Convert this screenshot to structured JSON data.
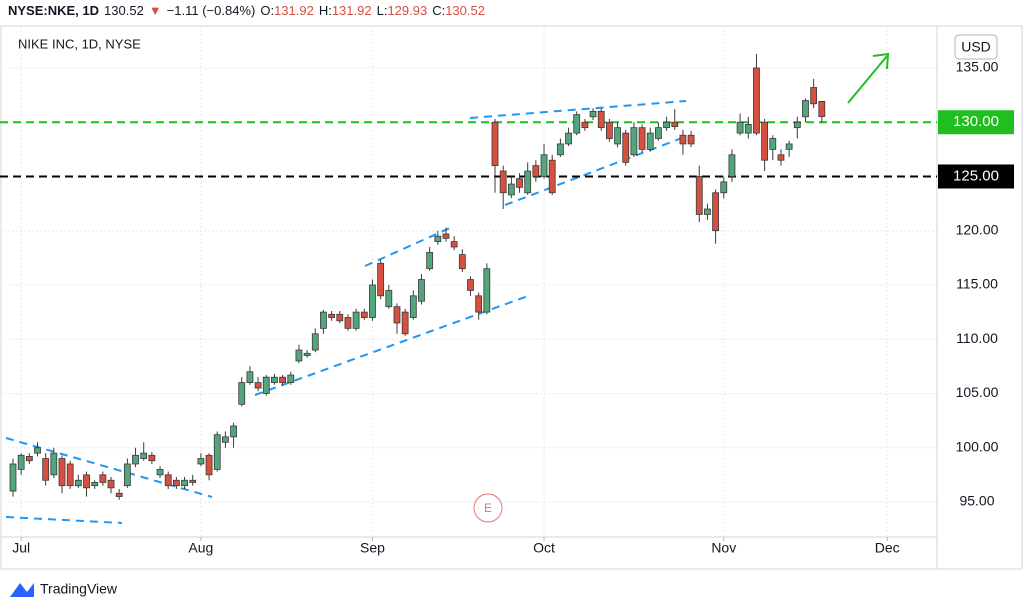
{
  "header": {
    "symbol": "NYSE:NKE, 1D",
    "arrow": "▼",
    "change": "−1.11 (−0.84%)",
    "open_label": "O:",
    "high_label": "H:",
    "low_label": "L:",
    "close_label": "C:",
    "currency": "USD",
    "brand": "TradingView",
    "earnings_marker": "E"
  },
  "chart_data": {
    "type": "candlestick",
    "title": "NIKE INC, 1D, NYSE",
    "up_color": "#53a57b",
    "down_color": "#d5503f",
    "open": [
      96,
      98,
      99.2,
      99.5,
      99,
      97.5,
      99,
      98.5,
      96.5,
      97.5,
      96.5,
      97.5,
      97,
      95.8,
      96.5,
      98.5,
      99,
      99.3,
      97.5,
      97.5,
      97,
      96.5,
      97,
      98.5,
      99.3,
      98,
      100.5,
      101,
      104,
      106,
      106,
      105,
      106,
      106.5,
      106,
      108,
      108.5,
      109,
      111,
      112.3,
      112.3,
      112,
      111,
      112.5,
      112,
      117,
      113,
      113,
      112.5,
      112,
      113.5,
      116.5,
      119,
      119.7,
      119,
      117.8,
      115.5,
      114,
      112.5,
      130,
      125.5,
      123.3,
      124.8,
      123.5,
      126,
      125,
      126.5,
      127,
      128,
      129,
      130,
      130.5,
      131,
      130,
      128,
      129,
      127,
      129.5,
      127.5,
      128.5,
      129.5,
      130,
      128.8,
      128.8,
      125,
      121.5,
      123.5,
      123.5,
      125,
      129,
      129,
      135,
      130,
      127.5,
      127,
      127.5,
      129.5,
      130.5,
      133.2,
      131.92
    ],
    "high": [
      99,
      99.5,
      99.5,
      100.5,
      99.5,
      100,
      99.3,
      98.8,
      97.5,
      97.8,
      97,
      97.8,
      97.3,
      96.2,
      99,
      100,
      100.5,
      99.6,
      98.3,
      97.8,
      97.3,
      97.3,
      97.5,
      99.5,
      99.5,
      101.5,
      101.5,
      102.3,
      106.5,
      107.5,
      106.5,
      106.7,
      106.8,
      106.7,
      107,
      109.5,
      109,
      111,
      112.7,
      112.6,
      112.6,
      112.3,
      112.8,
      112.8,
      115.5,
      117.3,
      115,
      113.3,
      112.8,
      114.5,
      116,
      118.5,
      120,
      120.3,
      119.5,
      118.3,
      115.8,
      114.3,
      117,
      130.3,
      126,
      125,
      125.3,
      126.3,
      126.5,
      128,
      127,
      128.5,
      129.5,
      131,
      130.3,
      131.3,
      131.3,
      130.3,
      130,
      129.3,
      130,
      129.8,
      129.5,
      130,
      130.5,
      131.2,
      129.3,
      129.2,
      126,
      122.5,
      123.8,
      125,
      127.5,
      130.8,
      130.5,
      136.3,
      130.3,
      128.8,
      127.5,
      128.3,
      130.5,
      132.2,
      134,
      131.92
    ],
    "low": [
      95.5,
      97.5,
      98.5,
      99.2,
      96.5,
      97.2,
      95.8,
      96.2,
      96.3,
      95.5,
      96.2,
      96.5,
      95.8,
      95.2,
      96.3,
      98.2,
      98.8,
      98.5,
      97.2,
      96.2,
      96.2,
      96.2,
      96.5,
      98.3,
      97,
      97.8,
      100,
      100,
      103.8,
      105.8,
      105.2,
      104.8,
      105.8,
      105.7,
      105.8,
      107.8,
      108.3,
      108.8,
      110.5,
      111.7,
      111.5,
      110.8,
      110.8,
      111.8,
      111.7,
      113.7,
      112.8,
      110.5,
      110.3,
      111.8,
      113.2,
      116.3,
      118.7,
      119,
      118.2,
      116.2,
      114,
      111.8,
      112.3,
      123.5,
      122,
      123,
      123.5,
      123.3,
      124.5,
      124.8,
      123.3,
      126.8,
      127.8,
      128.8,
      129.2,
      130.2,
      129.2,
      128.2,
      127.7,
      126,
      126.8,
      127.2,
      127.3,
      128.3,
      129.2,
      129.3,
      127,
      127.7,
      120.8,
      121,
      118.8,
      123,
      124.5,
      128.8,
      128.5,
      128.8,
      125.5,
      126.5,
      126,
      126.8,
      128.5,
      130,
      131.3,
      129.93
    ],
    "close": [
      98.5,
      99.3,
      98.8,
      100,
      97,
      99.5,
      96.5,
      96.5,
      97,
      96.3,
      96.8,
      96.8,
      96.3,
      95.5,
      98.5,
      99.3,
      99.5,
      98.8,
      98,
      96.5,
      96.5,
      97,
      96.8,
      99,
      97.5,
      101.2,
      101,
      102,
      106,
      107,
      105.5,
      106.5,
      106.5,
      106,
      106.7,
      109,
      108.7,
      110.5,
      112.5,
      112,
      111.7,
      111,
      112.5,
      112,
      115,
      114,
      114.5,
      111.5,
      110.5,
      114,
      115.5,
      118,
      119.5,
      119.3,
      118.5,
      116.5,
      114.5,
      112.5,
      116.5,
      126,
      123.5,
      124.3,
      124,
      125.5,
      125,
      127,
      123.5,
      128,
      129,
      130.7,
      129.5,
      131,
      129.5,
      128.5,
      129.5,
      126.3,
      129.5,
      127.5,
      129,
      129.5,
      130,
      129.6,
      128,
      128,
      121.5,
      122,
      120,
      124.5,
      127,
      130,
      129.8,
      129,
      126.5,
      128.5,
      126.5,
      128,
      130,
      132,
      131.7,
      130.52
    ],
    "xlim": [
      -1.59,
      113.1
    ],
    "xticks": [
      {
        "value": 1,
        "label": "Jul"
      },
      {
        "value": 23,
        "label": "Aug"
      },
      {
        "value": 44,
        "label": "Sep"
      },
      {
        "value": 65,
        "label": "Oct"
      },
      {
        "value": 87,
        "label": "Nov"
      },
      {
        "value": 107,
        "label": "Dec"
      }
    ],
    "ylim": [
      91.77,
      138.87
    ],
    "yticks": [
      {
        "value": 95,
        "label": "95.00"
      },
      {
        "value": 100,
        "label": "100.00"
      },
      {
        "value": 105,
        "label": "105.00"
      },
      {
        "value": 110,
        "label": "110.00"
      },
      {
        "value": 115,
        "label": "115.00"
      },
      {
        "value": 120,
        "label": "120.00"
      },
      {
        "value": 135,
        "label": "135.00"
      }
    ],
    "levels": [
      {
        "value": 130,
        "label": "130.00",
        "color": "#1fbf1f"
      },
      {
        "value": 125,
        "label": "125.00",
        "color": "#000000"
      }
    ],
    "grid": true
  }
}
